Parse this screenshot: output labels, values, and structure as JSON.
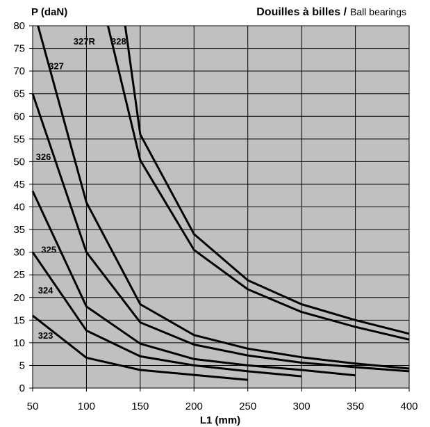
{
  "chart_data": {
    "type": "line",
    "title_bold": "Douilles à billes /",
    "title_normal": "Ball bearings",
    "ylabel": "P (daN)",
    "xlabel": "L1 (mm)",
    "xlim": [
      50,
      400
    ],
    "ylim": [
      0,
      80
    ],
    "xticks": [
      50,
      100,
      150,
      200,
      250,
      300,
      350,
      400
    ],
    "yticks": [
      0,
      5,
      10,
      15,
      20,
      25,
      30,
      35,
      40,
      45,
      50,
      55,
      60,
      65,
      70,
      75,
      80
    ],
    "grid": true,
    "colors": {
      "plot_bg": "#c0c0c0",
      "grid": "#000000",
      "line": "#000000"
    },
    "series": [
      {
        "name": "323",
        "label_at": [
          62,
          11.5
        ],
        "points": [
          [
            50,
            16
          ],
          [
            100,
            6.7
          ],
          [
            150,
            4
          ],
          [
            200,
            2.9
          ],
          [
            250,
            1.8
          ]
        ]
      },
      {
        "name": "324",
        "label_at": [
          62,
          21.5
        ],
        "points": [
          [
            50,
            30
          ],
          [
            100,
            12.7
          ],
          [
            150,
            7
          ],
          [
            200,
            5
          ],
          [
            250,
            3.7
          ],
          [
            300,
            2.6
          ]
        ]
      },
      {
        "name": "325",
        "label_at": [
          65,
          30.5
        ],
        "points": [
          [
            50,
            43.5
          ],
          [
            100,
            18
          ],
          [
            150,
            9.8
          ],
          [
            200,
            6.4
          ],
          [
            250,
            5
          ],
          [
            300,
            4
          ],
          [
            350,
            2.8
          ]
        ]
      },
      {
        "name": "326",
        "label_at": [
          60,
          51
        ],
        "points": [
          [
            50,
            65
          ],
          [
            100,
            30
          ],
          [
            150,
            14.5
          ],
          [
            200,
            9.6
          ],
          [
            250,
            7.2
          ],
          [
            300,
            5.6
          ],
          [
            350,
            4.6
          ],
          [
            400,
            3.7
          ]
        ]
      },
      {
        "name": "327",
        "label_at": [
          72,
          71
        ],
        "points": [
          [
            55,
            80
          ],
          [
            100,
            41
          ],
          [
            150,
            18.5
          ],
          [
            200,
            11.7
          ],
          [
            250,
            8.7
          ],
          [
            300,
            6.8
          ],
          [
            350,
            5.4
          ],
          [
            400,
            4.3
          ]
        ]
      },
      {
        "name": "327R",
        "label_at": [
          98,
          76.5
        ],
        "points": [
          [
            120,
            80
          ],
          [
            150,
            50.3
          ],
          [
            200,
            30.5
          ],
          [
            250,
            21.8
          ],
          [
            300,
            16.8
          ],
          [
            350,
            13.5
          ],
          [
            400,
            10.7
          ]
        ]
      },
      {
        "name": "328",
        "label_at": [
          130,
          76.5
        ],
        "points": [
          [
            136,
            80
          ],
          [
            150,
            56
          ],
          [
            200,
            34
          ],
          [
            250,
            23.8
          ],
          [
            300,
            18.5
          ],
          [
            350,
            15
          ],
          [
            400,
            12
          ]
        ]
      }
    ]
  }
}
